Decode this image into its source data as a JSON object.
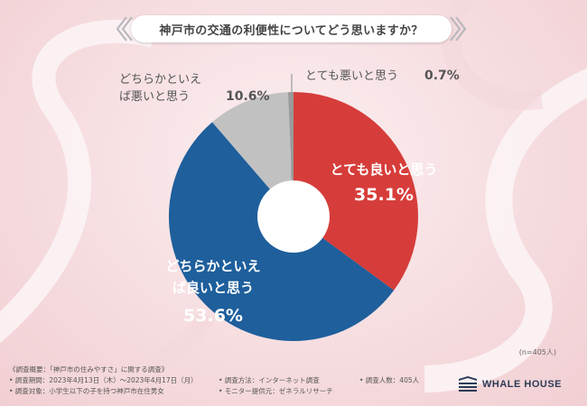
{
  "title": "神戸市の交通の利便性についてどう思いますか？",
  "n_label": "(n=405人)",
  "chart_data": {
    "type": "pie",
    "donut": true,
    "slices": [
      {
        "label": "とても良いと思う",
        "value": 35.1,
        "value_text": "35.1%",
        "color": "#d63d3a"
      },
      {
        "label": "どちらかといえば良いと思う",
        "value": 53.6,
        "value_text": "53.6%",
        "color": "#1e5f9c"
      },
      {
        "label": "どちらかといえば悪いと思う",
        "value": 10.6,
        "value_text": "10.6%",
        "color": "#c1c1c1"
      },
      {
        "label": "とても悪いと思う",
        "value": 0.7,
        "value_text": "0.7%",
        "color": "#9a9a9a"
      }
    ]
  },
  "footer": {
    "col1": [
      "《調査概要：「神戸市の住みやすさ」に関する調査》",
      "• 調査期間：2023年4月13日（木）～2023年4月17日（月）",
      "• 調査対象：小学生以下の子を持つ神戸市在住男女"
    ],
    "col2": [
      "• 調査方法：インターネット調査",
      "• モニター提供元：ゼネラルリサーチ"
    ],
    "col3": [
      "• 調査人数：405人"
    ]
  },
  "logo": {
    "text": "WHALE HOUSE"
  }
}
